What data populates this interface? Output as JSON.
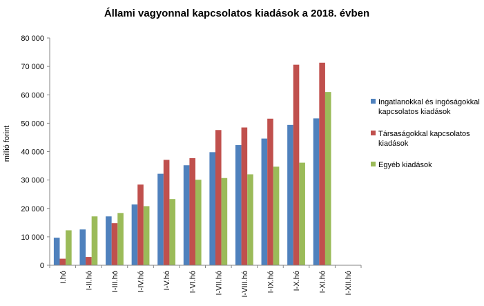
{
  "chart_data": {
    "type": "bar",
    "title": "Állami vagyonnal kapcsolatos kiadások a 2018. évben",
    "xlabel": "",
    "ylabel": "millió forint",
    "ylim": [
      0,
      80000
    ],
    "yticks": [
      0,
      10000,
      20000,
      30000,
      40000,
      50000,
      60000,
      70000,
      80000
    ],
    "ytick_labels": [
      "0",
      "10 000",
      "20 000",
      "30 000",
      "40 000",
      "50 000",
      "60 000",
      "70 000",
      "80 000"
    ],
    "grid": false,
    "legend_position": "right",
    "categories": [
      "I.hó",
      "I-II.hó",
      "I-III.hó",
      "I-IV.hó",
      "I-V.hó",
      "I-VI.hó",
      "I-VII.hó",
      "I-VIII.hó",
      "I-IX.hó",
      "I-X.hó",
      "I-XI.hó",
      "I-XII.hó"
    ],
    "series": [
      {
        "name": "Ingatlanokkal és ingóságokkal kapcsolatos kiadások",
        "legend_lines": [
          "Ingatlanokkal és ingóságokkal",
          "kapcsolatos kiadások"
        ],
        "color": "#4F81BD",
        "values": [
          9700,
          12600,
          17200,
          21400,
          32200,
          35200,
          39800,
          42300,
          44600,
          49400,
          51700,
          null
        ]
      },
      {
        "name": "Társaságokkal kapcsolatos kiadások",
        "legend_lines": [
          "Társaságokkal kapcsolatos",
          "kiadások"
        ],
        "color": "#C0504D",
        "values": [
          2300,
          2900,
          14800,
          28400,
          37100,
          37700,
          47600,
          48500,
          51600,
          70600,
          71300,
          null
        ]
      },
      {
        "name": "Egyéb kiadások",
        "legend_lines": [
          "Egyéb kiadások"
        ],
        "color": "#9BBB59",
        "values": [
          12300,
          17200,
          18400,
          20800,
          23300,
          30100,
          30700,
          32000,
          34700,
          36100,
          61000,
          null
        ]
      }
    ]
  }
}
